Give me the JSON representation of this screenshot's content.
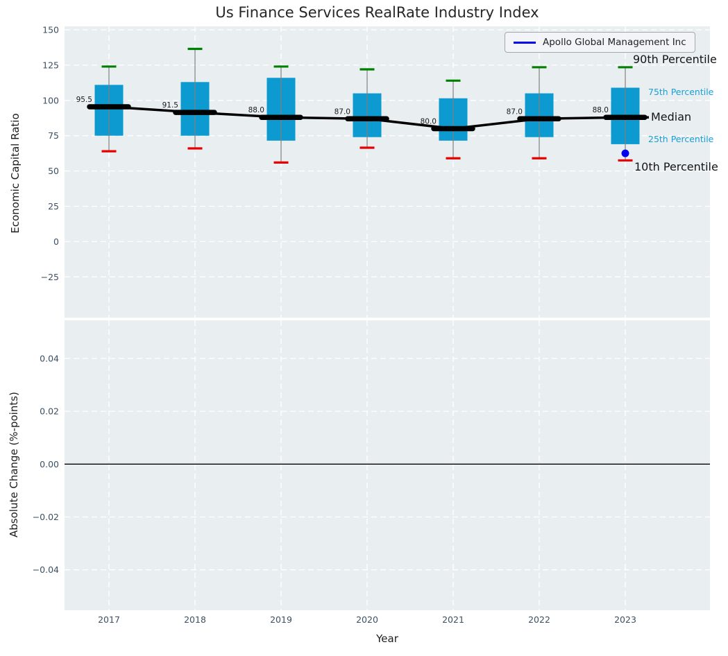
{
  "chart_data": {
    "type": "boxplot",
    "title": "Us Finance Services RealRate Industry Index",
    "xlabel": "Year",
    "categories": [
      "2017",
      "2018",
      "2019",
      "2020",
      "2021",
      "2022",
      "2023"
    ],
    "legend": {
      "label": "Apollo Global Management Inc"
    },
    "top_panel": {
      "ylabel": "Economic Capital Ratio",
      "ylim": [
        -54,
        152.5
      ],
      "grid": true,
      "yticks": [
        "150",
        "125",
        "100",
        "75",
        "50",
        "25",
        "0",
        "−25"
      ],
      "ytick_values": [
        150,
        125,
        100,
        75,
        50,
        25,
        0,
        -25
      ],
      "boxes": [
        {
          "year": "2017",
          "p10": 64,
          "p25": 75,
          "median": 95.5,
          "p75": 111,
          "p90": 124,
          "median_label": "95.5"
        },
        {
          "year": "2018",
          "p10": 66,
          "p25": 75,
          "median": 91.5,
          "p75": 113,
          "p90": 136.5,
          "median_label": "91.5"
        },
        {
          "year": "2019",
          "p10": 56,
          "p25": 71.5,
          "median": 88,
          "p75": 116,
          "p90": 124,
          "median_label": "88.0"
        },
        {
          "year": "2020",
          "p10": 66.5,
          "p25": 74,
          "median": 87,
          "p75": 105,
          "p90": 122,
          "median_label": "87.0"
        },
        {
          "year": "2021",
          "p10": 59,
          "p25": 71.5,
          "median": 80,
          "p75": 101.5,
          "p90": 114,
          "median_label": "80.0"
        },
        {
          "year": "2022",
          "p10": 59,
          "p25": 74,
          "median": 87,
          "p75": 105,
          "p90": 123.5,
          "median_label": "87.0"
        },
        {
          "year": "2023",
          "p10": 57.5,
          "p25": 69,
          "median": 88,
          "p75": 109,
          "p90": 123.5,
          "median_label": "88.0"
        }
      ],
      "company": {
        "name": "Apollo Global Management Inc",
        "points": [
          {
            "year": "2023",
            "value": 62.5
          }
        ]
      },
      "labels": {
        "p90": "90th Percentile",
        "p75": "75th Percentile",
        "median": "Median",
        "p25": "25th Percentile",
        "p10": "10th Percentile"
      }
    },
    "bottom_panel": {
      "ylabel": "Absolute Change (%-points)",
      "ylim": [
        -0.055,
        0.055
      ],
      "grid": true,
      "yticks": [
        "0.04",
        "0.02",
        "0.00",
        "−0.02",
        "−0.04"
      ],
      "ytick_values": [
        0.04,
        0.02,
        0,
        -0.02,
        -0.04
      ],
      "zero_line": 0.0
    },
    "colors": {
      "box_fill": "#0d9ad0",
      "whisker": "#7f7f7f",
      "cap_top": "#008000",
      "cap_bottom": "#e60000",
      "median_line": "#000000",
      "company": "#0000ee",
      "label_teal": "#1a9fd4",
      "axes_bg": "#e9eef0",
      "grid": "#ffffff",
      "tick_text": "#3d4f63",
      "annotation_text": "#1a1a1a"
    }
  }
}
